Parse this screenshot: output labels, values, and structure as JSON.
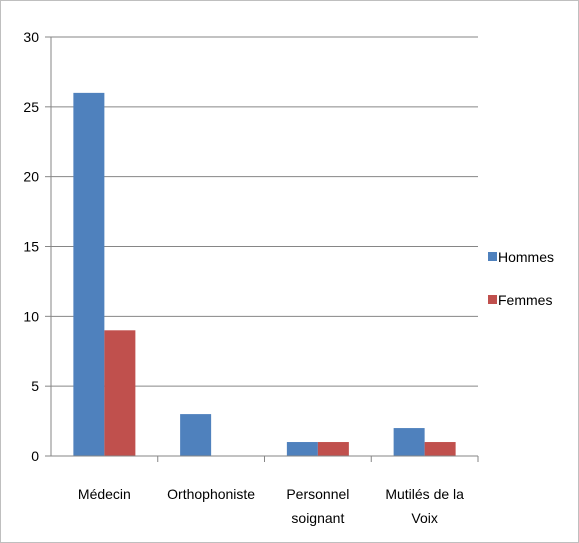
{
  "chart_data": {
    "type": "bar",
    "title": "",
    "xlabel": "",
    "ylabel": "",
    "categories": [
      [
        "Médecin"
      ],
      [
        "Orthophoniste"
      ],
      [
        "Personnel",
        "soignant"
      ],
      [
        "Mutilés de la",
        "Voix"
      ]
    ],
    "series": [
      {
        "name": "Hommes",
        "color": "#4f81bd",
        "values": [
          26,
          3,
          1,
          2
        ]
      },
      {
        "name": "Femmes",
        "color": "#c0504d",
        "values": [
          9,
          0,
          1,
          1
        ]
      }
    ],
    "ylim": [
      0,
      30
    ],
    "yticks": [
      0,
      5,
      10,
      15,
      20,
      25,
      30
    ],
    "grid": true,
    "legend_position": "right"
  }
}
